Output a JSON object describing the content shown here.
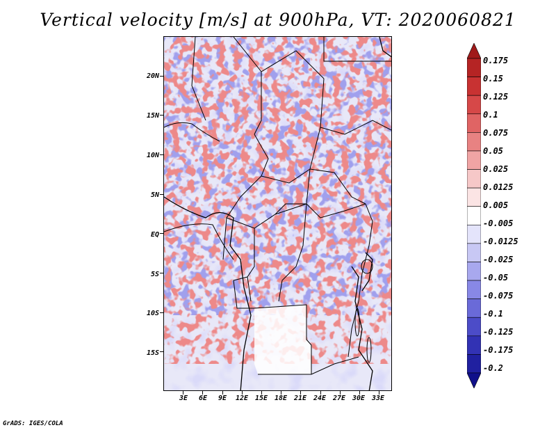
{
  "title": "Vertical velocity [m/s] at 900hPa, VT: 2020060821",
  "credit": "GrADS: IGES/COLA",
  "map": {
    "latitude_labels": [
      "20N",
      "15N",
      "10N",
      "5N",
      "EQ",
      "5S",
      "10S",
      "15S"
    ],
    "latitude_values": [
      20,
      15,
      10,
      5,
      0,
      -5,
      -10,
      -15
    ],
    "longitude_labels": [
      "3E",
      "6E",
      "9E",
      "12E",
      "15E",
      "18E",
      "21E",
      "24E",
      "27E",
      "30E",
      "33E"
    ],
    "longitude_values": [
      3,
      6,
      9,
      12,
      15,
      18,
      21,
      24,
      27,
      30,
      33
    ],
    "lon_range": [
      0,
      35
    ],
    "lat_range": [
      -20,
      25
    ]
  },
  "colorbar": {
    "levels": [
      "0.175",
      "0.15",
      "0.125",
      "0.1",
      "0.075",
      "0.05",
      "0.025",
      "0.0125",
      "0.005",
      "-0.005",
      "-0.0125",
      "-0.025",
      "-0.05",
      "-0.075",
      "-0.1",
      "-0.125",
      "-0.175",
      "-0.2"
    ],
    "colors": [
      "#a01a1a",
      "#b52424",
      "#c83232",
      "#d64848",
      "#e06464",
      "#e88282",
      "#f0a4a4",
      "#f6c8c8",
      "#fbe4e4",
      "#ffffff",
      "#e4e4fb",
      "#c8c8f4",
      "#a8a8ee",
      "#8888e6",
      "#6a6ad8",
      "#4c4cc8",
      "#3232b4",
      "#2020a0",
      "#10108a"
    ]
  }
}
